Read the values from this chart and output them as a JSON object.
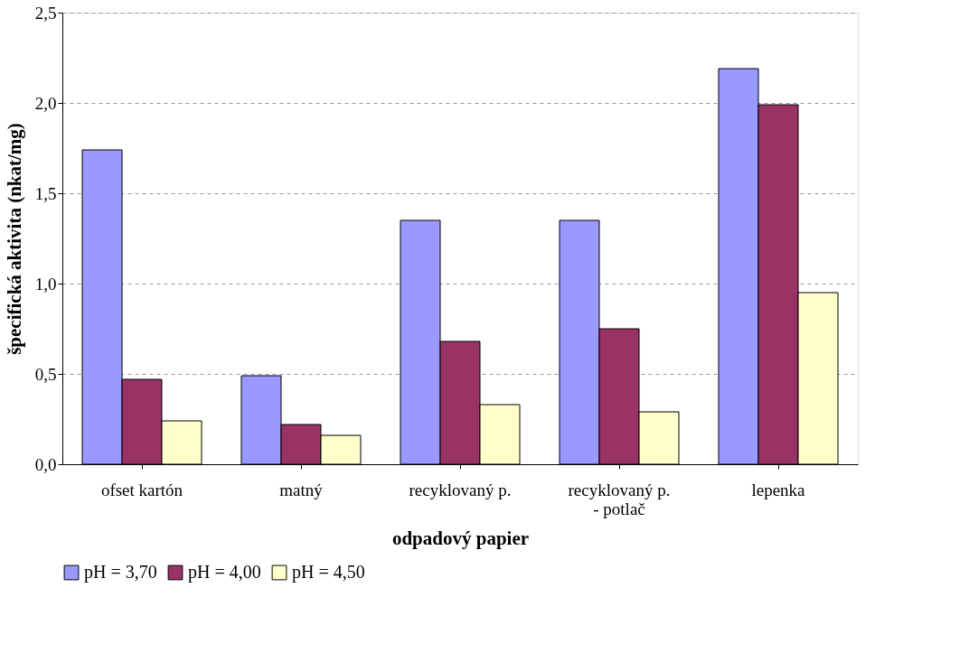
{
  "chart_data": {
    "type": "bar",
    "xlabel": "odpadový papier",
    "ylabel": "špecifická aktivita (nkat/mg)",
    "categories": [
      "ofset kartón",
      "matný",
      "recyklovaný p.",
      "recyklovaný p.\n- potlač",
      "lepenka"
    ],
    "series": [
      {
        "name": "pH = 3,70",
        "color": "#9999ff",
        "values": [
          1.74,
          0.49,
          1.35,
          1.35,
          2.19
        ]
      },
      {
        "name": "pH = 4,00",
        "color": "#993366",
        "values": [
          0.47,
          0.22,
          0.68,
          0.75,
          1.99
        ]
      },
      {
        "name": "pH = 4,50",
        "color": "#ffffcc",
        "values": [
          0.24,
          0.16,
          0.33,
          0.29,
          0.95
        ]
      }
    ],
    "ylim": [
      0,
      2.5
    ],
    "yticks": [
      {
        "value": 0,
        "label": "0,0"
      },
      {
        "value": 0.5,
        "label": "0,5"
      },
      {
        "value": 1,
        "label": "1,0"
      },
      {
        "value": 1.5,
        "label": "1,5"
      },
      {
        "value": 2,
        "label": "2,0"
      },
      {
        "value": 2.5,
        "label": "2,5"
      }
    ],
    "grid": "y",
    "legend": "bottom"
  }
}
